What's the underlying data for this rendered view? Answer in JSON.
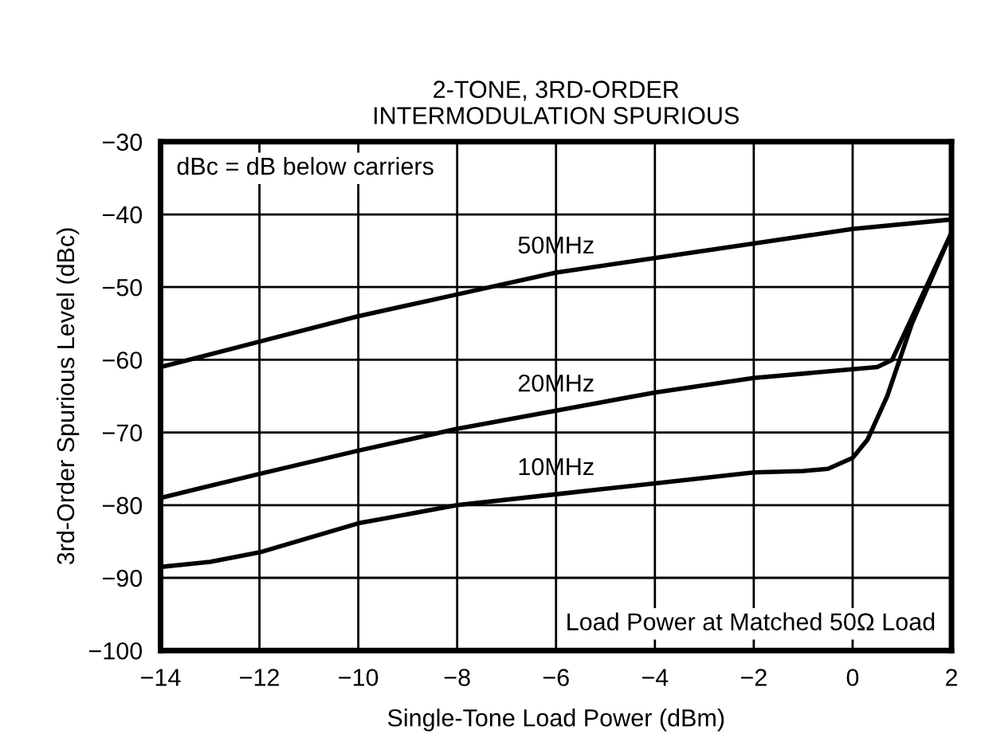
{
  "chart_data": {
    "type": "line",
    "title": "2-TONE, 3RD-ORDER\nINTERMODULATION SPURIOUS",
    "xlabel": "Single-Tone Load Power (dBm)",
    "ylabel": "3rd-Order Spurious Level (dBc)",
    "xlim": [
      -14,
      2
    ],
    "xticks": [
      {
        "value": -14,
        "label": "−14"
      },
      {
        "value": -12,
        "label": "−12"
      },
      {
        "value": -10,
        "label": "−10"
      },
      {
        "value": -8,
        "label": "−8"
      },
      {
        "value": -6,
        "label": "−6"
      },
      {
        "value": -4,
        "label": "−4"
      },
      {
        "value": -2,
        "label": "−2"
      },
      0,
      2
    ],
    "ylim": [
      -100,
      -30
    ],
    "yticks": [
      {
        "value": -100,
        "label": "−100"
      },
      {
        "value": -90,
        "label": "−90"
      },
      {
        "value": -80,
        "label": "−80"
      },
      {
        "value": -70,
        "label": "−70"
      },
      {
        "value": -60,
        "label": "−60"
      },
      {
        "value": -50,
        "label": "−50"
      },
      {
        "value": -40,
        "label": "−40"
      },
      {
        "value": -30,
        "label": "−30"
      }
    ],
    "grid": true,
    "marker": "none",
    "line_style": "solid",
    "series": [
      {
        "name": "50MHz",
        "color": "#000000",
        "x": [
          -14,
          -12,
          -10,
          -8,
          -6,
          -4,
          -2,
          0,
          2
        ],
        "values": [
          -61,
          -57.5,
          -54,
          -51,
          -48,
          -46,
          -44,
          -42,
          -40.7
        ]
      },
      {
        "name": "20MHz",
        "color": "#000000",
        "x": [
          -14,
          -12,
          -10,
          -8,
          -6,
          -4,
          -2,
          0,
          0.5,
          0.8,
          2
        ],
        "values": [
          -79,
          -75.7,
          -72.5,
          -69.5,
          -67,
          -64.5,
          -62.5,
          -61.3,
          -61,
          -60,
          -42.5
        ]
      },
      {
        "name": "10MHz",
        "color": "#000000",
        "x": [
          -14,
          -13,
          -12,
          -11,
          -10,
          -8,
          -6,
          -4,
          -2,
          -1,
          -0.5,
          0,
          0.3,
          0.7,
          1.2,
          2
        ],
        "values": [
          -88.5,
          -87.8,
          -86.5,
          -84.5,
          -82.5,
          -80,
          -78.5,
          -77,
          -75.5,
          -75.3,
          -75,
          -73.5,
          -71,
          -65,
          -55,
          -42.5
        ]
      }
    ],
    "annotations": [
      "dBc = dB below carriers",
      "Load Power at Matched 50Ω Load"
    ]
  }
}
